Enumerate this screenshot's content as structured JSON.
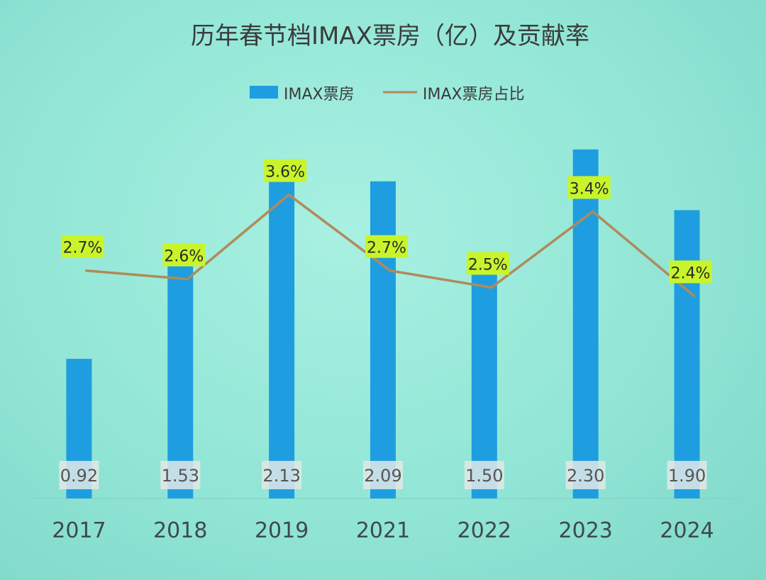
{
  "chart_data": {
    "type": "bar",
    "title": "历年春节档IMAX票房（亿）及贡献率",
    "categories": [
      "2017",
      "2018",
      "2019",
      "2021",
      "2022",
      "2023",
      "2024"
    ],
    "series": [
      {
        "name": "IMAX票房",
        "type": "bar",
        "color": "#1e9ee0",
        "values": [
          0.92,
          1.53,
          2.13,
          2.09,
          1.5,
          2.3,
          1.9
        ],
        "value_labels": [
          "0.92",
          "1.53",
          "2.13",
          "2.09",
          "1.50",
          "2.30",
          "1.90"
        ]
      },
      {
        "name": "IMAX票房占比",
        "type": "line",
        "color": "#b08a5a",
        "label_highlight": "#c8f52a",
        "values": [
          2.7,
          2.6,
          3.6,
          2.7,
          2.5,
          3.4,
          2.4
        ],
        "value_labels": [
          "2.7%",
          "2.6%",
          "3.6%",
          "2.7%",
          "2.5%",
          "3.4%",
          "2.4%"
        ]
      }
    ],
    "ylim": [
      0,
      2.5
    ],
    "y2lim": [
      0,
      5.0
    ],
    "grid": false,
    "legend_position": "top-center"
  }
}
